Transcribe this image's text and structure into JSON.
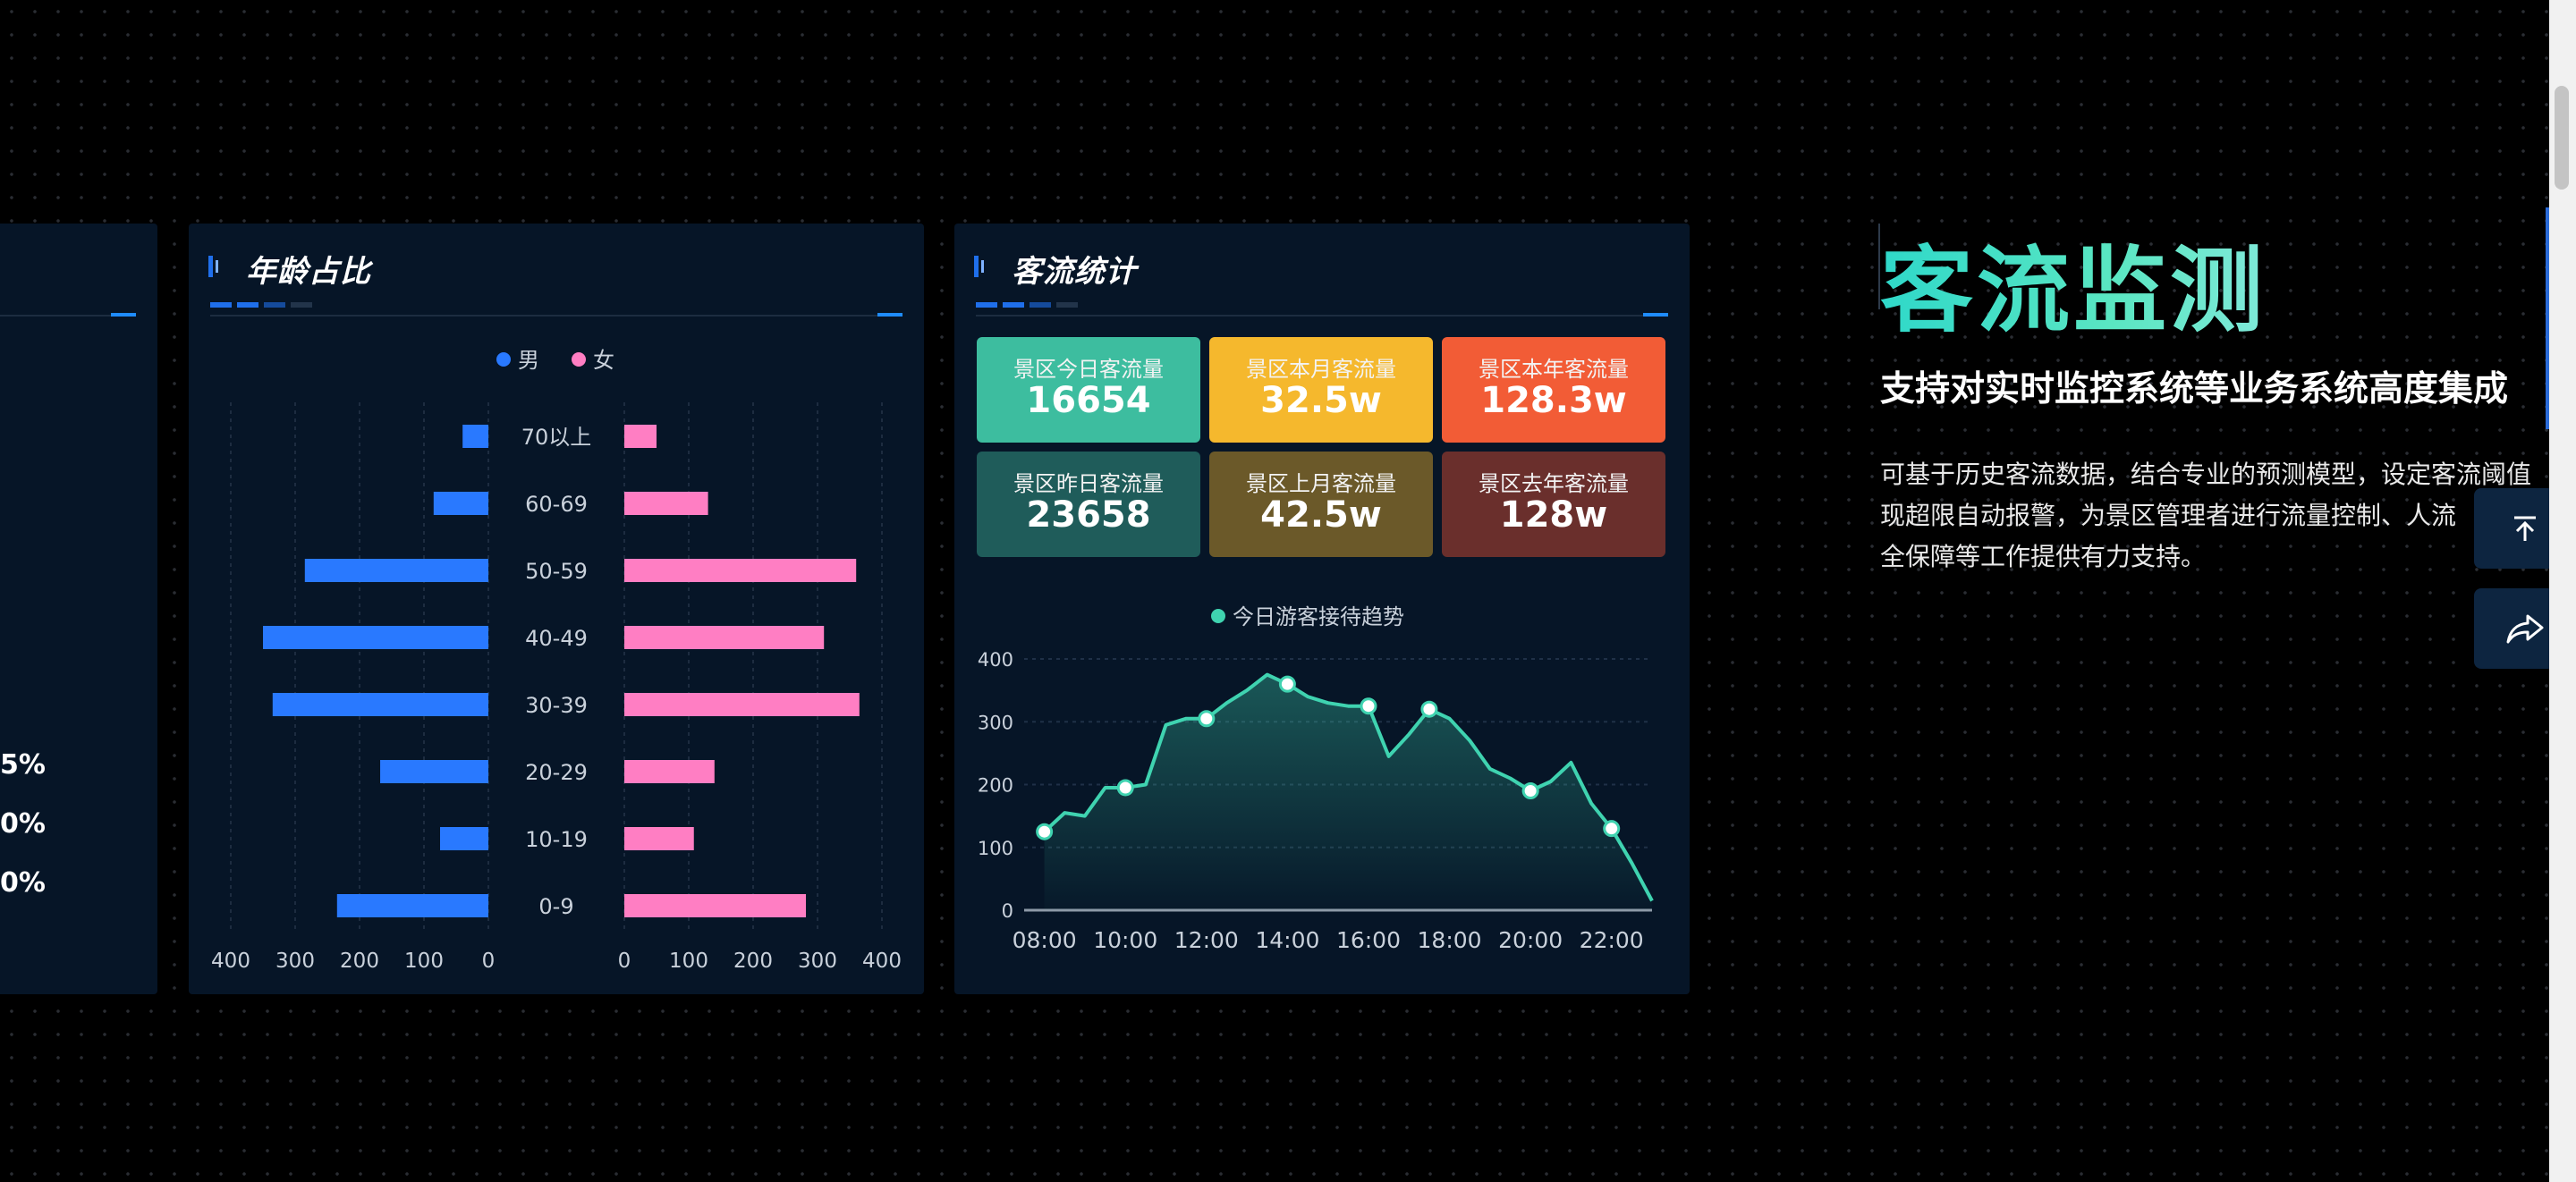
{
  "left_panel": {
    "percent_labels": [
      "5%",
      "0%",
      "0%"
    ]
  },
  "age_panel": {
    "title": "年龄占比",
    "legend": [
      {
        "name": "男",
        "color": "#2979ff"
      },
      {
        "name": "女",
        "color": "#ff7ec3"
      }
    ],
    "chart_data": {
      "type": "bar",
      "categories": [
        "70以上",
        "60-69",
        "50-59",
        "40-49",
        "30-39",
        "20-29",
        "10-19",
        "0-9"
      ],
      "series": [
        {
          "name": "男",
          "values": [
            40,
            85,
            285,
            350,
            335,
            168,
            75,
            235
          ]
        },
        {
          "name": "女",
          "values": [
            50,
            130,
            360,
            310,
            365,
            140,
            108,
            282
          ]
        }
      ],
      "left_axis_ticks": [
        "400",
        "300",
        "200",
        "100",
        "0"
      ],
      "right_axis_ticks": [
        "0",
        "100",
        "200",
        "300",
        "400"
      ],
      "xlim": [
        0,
        400
      ]
    }
  },
  "flow_panel": {
    "title": "客流统计",
    "stats": [
      {
        "label": "景区今日客流量",
        "value": "16654",
        "color": "#3dbd9f"
      },
      {
        "label": "景区本月客流量",
        "value": "32.5w",
        "color": "#f5b82d"
      },
      {
        "label": "景区本年客流量",
        "value": "128.3w",
        "color": "#f25c36"
      },
      {
        "label": "景区昨日客流量",
        "value": "23658",
        "color": "#1f5c5a"
      },
      {
        "label": "景区上月客流量",
        "value": "42.5w",
        "color": "#6b5929"
      },
      {
        "label": "景区去年客流量",
        "value": "128w",
        "color": "#6a2f2c"
      }
    ],
    "chart_data": {
      "type": "area",
      "title": "今日游客接待趋势",
      "series_color": "#3fd3b0",
      "x_ticks": [
        "08:00",
        "10:00",
        "12:00",
        "14:00",
        "16:00",
        "18:00",
        "20:00",
        "22:00"
      ],
      "y_ticks": [
        "0",
        "100",
        "200",
        "300",
        "400"
      ],
      "ylim": [
        0,
        400
      ],
      "xlim": [
        7.5,
        23.0
      ],
      "x": [
        8,
        8.5,
        9,
        9.5,
        10,
        10.5,
        11,
        11.5,
        12,
        12.5,
        13,
        13.5,
        14,
        14.5,
        15,
        15.5,
        16,
        16.5,
        17,
        17.5,
        18,
        18.5,
        19,
        19.5,
        20,
        20.5,
        21,
        21.5,
        22,
        22.5,
        23
      ],
      "y": [
        125,
        155,
        150,
        195,
        195,
        200,
        295,
        305,
        305,
        330,
        350,
        375,
        360,
        340,
        330,
        325,
        325,
        245,
        280,
        320,
        305,
        270,
        225,
        210,
        190,
        205,
        235,
        170,
        130,
        75,
        15
      ],
      "markers_x": [
        8,
        10,
        12,
        14,
        16,
        17.7,
        20,
        22
      ]
    }
  },
  "right_text": {
    "title": "客流监测",
    "subtitle": "支持对实时监控系统等业务系统高度集成",
    "desc_lines": [
      "可基于历史客流数据，结合专业的预测模型，设定客流阈值",
      "现超限自动报警，为景区管理者进行流量控制、人流",
      "全保障等工作提供有力支持。"
    ]
  },
  "fabs": [
    {
      "icon": "back-to-top-icon"
    },
    {
      "icon": "share-icon"
    }
  ]
}
